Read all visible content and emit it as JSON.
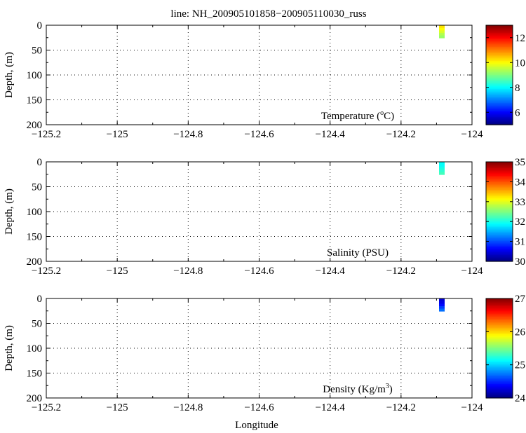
{
  "chart_data": {
    "title": "line: NH_200905101858−200905110030_russ",
    "xlabel": "Longitude",
    "ylabel": "Depth, (m)",
    "xlim": [
      -125.2,
      -124.0
    ],
    "ylim": [
      200,
      0
    ],
    "x_ticks": [
      -125.2,
      -125.0,
      -124.8,
      -124.6,
      -124.4,
      -124.2,
      -124.0
    ],
    "x_tick_labels": [
      "−125.2",
      "−125",
      "−124.8",
      "−124.6",
      "−124.4",
      "−124.2",
      "−124"
    ],
    "y_ticks": [
      0,
      50,
      100,
      150,
      200
    ],
    "y_tick_labels": [
      "0",
      "50",
      "100",
      "150",
      "200"
    ],
    "grid": true,
    "panels": [
      {
        "type": "heatmap",
        "label_text": "Temperature (",
        "label_sup": "o",
        "label_tail": "C)",
        "colorbar": {
          "min": 5,
          "max": 13,
          "ticks": [
            6,
            8,
            10,
            12
          ],
          "tick_labels": [
            "6",
            "8",
            "10",
            "12"
          ]
        },
        "points": [
          {
            "lon": -124.085,
            "depth": 3,
            "value": 10.2
          },
          {
            "lon": -124.085,
            "depth": 8,
            "value": 10.0
          },
          {
            "lon": -124.085,
            "depth": 13,
            "value": 9.7
          },
          {
            "lon": -124.085,
            "depth": 18,
            "value": 9.4
          },
          {
            "lon": -124.085,
            "depth": 23,
            "value": 9.2
          }
        ]
      },
      {
        "type": "heatmap",
        "label_text": "Salinity (PSU)",
        "label_sup": "",
        "label_tail": "",
        "colorbar": {
          "min": 30,
          "max": 35,
          "ticks": [
            30,
            31,
            32,
            33,
            34,
            35
          ],
          "tick_labels": [
            "30",
            "31",
            "32",
            "33",
            "34",
            "35"
          ]
        },
        "points": [
          {
            "lon": -124.085,
            "depth": 3,
            "value": 31.9
          },
          {
            "lon": -124.085,
            "depth": 8,
            "value": 31.9
          },
          {
            "lon": -124.085,
            "depth": 13,
            "value": 32.0
          },
          {
            "lon": -124.085,
            "depth": 18,
            "value": 32.1
          },
          {
            "lon": -124.085,
            "depth": 23,
            "value": 32.2
          }
        ]
      },
      {
        "type": "heatmap",
        "label_text": "Density (Kg/m",
        "label_sup": "3",
        "label_tail": ")",
        "colorbar": {
          "min": 24,
          "max": 27,
          "ticks": [
            24,
            25,
            26,
            27
          ],
          "tick_labels": [
            "24",
            "25",
            "26",
            "27"
          ]
        },
        "points": [
          {
            "lon": -124.085,
            "depth": 3,
            "value": 24.25
          },
          {
            "lon": -124.085,
            "depth": 8,
            "value": 24.3
          },
          {
            "lon": -124.085,
            "depth": 13,
            "value": 24.4
          },
          {
            "lon": -124.085,
            "depth": 18,
            "value": 24.55
          },
          {
            "lon": -124.085,
            "depth": 23,
            "value": 24.7
          }
        ]
      }
    ]
  }
}
